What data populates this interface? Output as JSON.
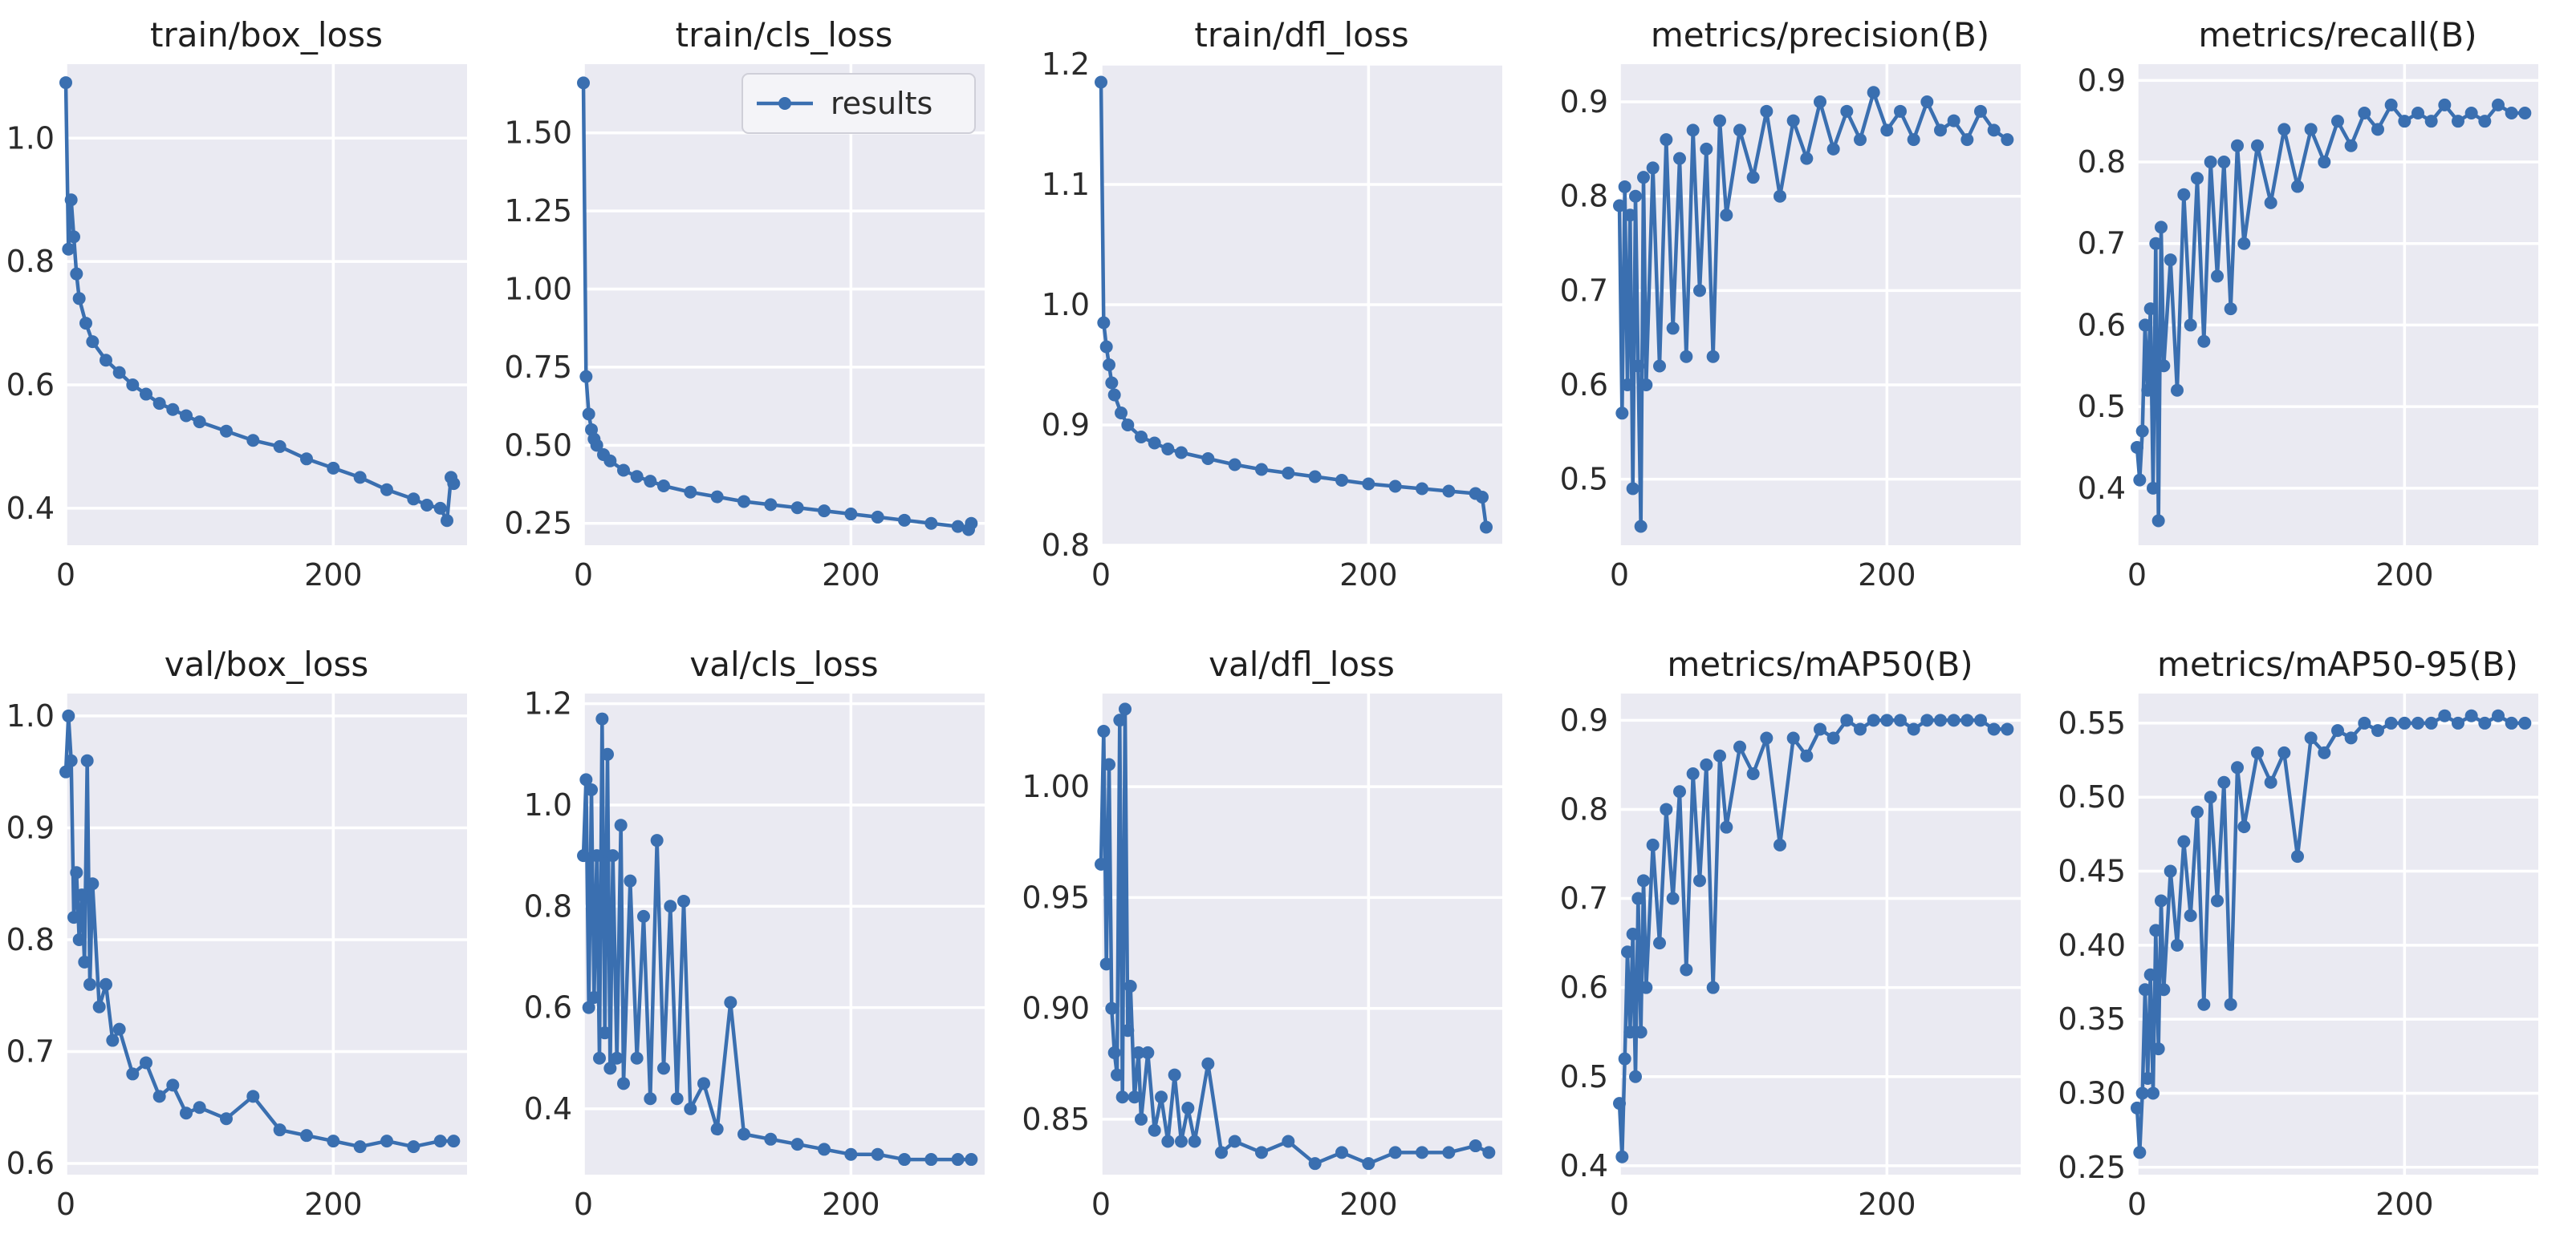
{
  "colors": {
    "series": "#3a6fb0",
    "panel_background": "#eaeaf2",
    "grid": "#ffffff"
  },
  "chart_data": [
    {
      "type": "line",
      "title": "train/box_loss",
      "xlim": [
        0,
        300
      ],
      "ylim": [
        0.34,
        1.12
      ],
      "xticks": [
        0,
        200
      ],
      "yticks": [
        0.4,
        0.6,
        0.8,
        1.0
      ],
      "ytick_labels": [
        "0.4",
        "0.6",
        "0.8",
        "1.0"
      ],
      "series": [
        {
          "name": "results",
          "x": [
            0,
            2,
            4,
            6,
            8,
            10,
            15,
            20,
            30,
            40,
            50,
            60,
            70,
            80,
            90,
            100,
            120,
            140,
            160,
            180,
            200,
            220,
            240,
            260,
            270,
            280,
            285,
            288,
            290
          ],
          "values": [
            1.09,
            0.82,
            0.9,
            0.84,
            0.78,
            0.74,
            0.7,
            0.67,
            0.64,
            0.62,
            0.6,
            0.585,
            0.57,
            0.56,
            0.55,
            0.54,
            0.525,
            0.51,
            0.5,
            0.48,
            0.465,
            0.45,
            0.43,
            0.415,
            0.405,
            0.4,
            0.38,
            0.45,
            0.44
          ]
        }
      ]
    },
    {
      "type": "line",
      "title": "train/cls_loss",
      "xlim": [
        0,
        300
      ],
      "ylim": [
        0.18,
        1.72
      ],
      "xticks": [
        0,
        200
      ],
      "yticks": [
        0.25,
        0.5,
        0.75,
        1.0,
        1.25,
        1.5
      ],
      "ytick_labels": [
        "0.25",
        "0.50",
        "0.75",
        "1.00",
        "1.25",
        "1.50"
      ],
      "legend": {
        "label": "results",
        "position": "upper right"
      },
      "series": [
        {
          "name": "results",
          "x": [
            0,
            2,
            4,
            6,
            8,
            10,
            15,
            20,
            30,
            40,
            50,
            60,
            80,
            100,
            120,
            140,
            160,
            180,
            200,
            220,
            240,
            260,
            280,
            288,
            290
          ],
          "values": [
            1.66,
            0.72,
            0.6,
            0.55,
            0.52,
            0.5,
            0.47,
            0.45,
            0.42,
            0.4,
            0.385,
            0.37,
            0.35,
            0.335,
            0.32,
            0.31,
            0.3,
            0.29,
            0.28,
            0.27,
            0.26,
            0.25,
            0.24,
            0.23,
            0.25
          ]
        }
      ]
    },
    {
      "type": "line",
      "title": "train/dfl_loss",
      "xlim": [
        0,
        300
      ],
      "ylim": [
        0.8,
        1.2
      ],
      "xticks": [
        0,
        200
      ],
      "yticks": [
        0.8,
        0.9,
        1.0,
        1.1,
        1.2
      ],
      "ytick_labels": [
        "0.8",
        "0.9",
        "1.0",
        "1.1",
        "1.2"
      ],
      "series": [
        {
          "name": "results",
          "x": [
            0,
            2,
            4,
            6,
            8,
            10,
            15,
            20,
            30,
            40,
            50,
            60,
            80,
            100,
            120,
            140,
            160,
            180,
            200,
            220,
            240,
            260,
            280,
            285,
            288
          ],
          "values": [
            1.185,
            0.985,
            0.965,
            0.95,
            0.935,
            0.925,
            0.91,
            0.9,
            0.89,
            0.885,
            0.88,
            0.877,
            0.872,
            0.867,
            0.863,
            0.86,
            0.857,
            0.854,
            0.851,
            0.849,
            0.847,
            0.845,
            0.843,
            0.84,
            0.815
          ]
        }
      ]
    },
    {
      "type": "line",
      "title": "metrics/precision(B)",
      "xlim": [
        0,
        300
      ],
      "ylim": [
        0.43,
        0.94
      ],
      "xticks": [
        0,
        200
      ],
      "yticks": [
        0.5,
        0.6,
        0.7,
        0.8,
        0.9
      ],
      "ytick_labels": [
        "0.5",
        "0.6",
        "0.7",
        "0.8",
        "0.9"
      ],
      "series": [
        {
          "name": "results",
          "x": [
            0,
            2,
            4,
            6,
            8,
            10,
            12,
            14,
            16,
            18,
            20,
            25,
            30,
            35,
            40,
            45,
            50,
            55,
            60,
            65,
            70,
            75,
            80,
            90,
            100,
            110,
            120,
            130,
            140,
            150,
            160,
            170,
            180,
            190,
            200,
            210,
            220,
            230,
            240,
            250,
            260,
            270,
            280,
            290
          ],
          "values": [
            0.79,
            0.57,
            0.81,
            0.6,
            0.78,
            0.49,
            0.8,
            0.62,
            0.45,
            0.82,
            0.6,
            0.83,
            0.62,
            0.86,
            0.66,
            0.84,
            0.63,
            0.87,
            0.7,
            0.85,
            0.63,
            0.88,
            0.78,
            0.87,
            0.82,
            0.89,
            0.8,
            0.88,
            0.84,
            0.9,
            0.85,
            0.89,
            0.86,
            0.91,
            0.87,
            0.89,
            0.86,
            0.9,
            0.87,
            0.88,
            0.86,
            0.89,
            0.87,
            0.86
          ]
        }
      ]
    },
    {
      "type": "line",
      "title": "metrics/recall(B)",
      "xlim": [
        0,
        300
      ],
      "ylim": [
        0.33,
        0.92
      ],
      "xticks": [
        0,
        200
      ],
      "yticks": [
        0.4,
        0.5,
        0.6,
        0.7,
        0.8,
        0.9
      ],
      "ytick_labels": [
        "0.4",
        "0.5",
        "0.6",
        "0.7",
        "0.8",
        "0.9"
      ],
      "series": [
        {
          "name": "results",
          "x": [
            0,
            2,
            4,
            6,
            8,
            10,
            12,
            14,
            16,
            18,
            20,
            25,
            30,
            35,
            40,
            45,
            50,
            55,
            60,
            65,
            70,
            75,
            80,
            90,
            100,
            110,
            120,
            130,
            140,
            150,
            160,
            170,
            180,
            190,
            200,
            210,
            220,
            230,
            240,
            250,
            260,
            270,
            280,
            290
          ],
          "values": [
            0.45,
            0.41,
            0.47,
            0.6,
            0.52,
            0.62,
            0.4,
            0.7,
            0.36,
            0.72,
            0.55,
            0.68,
            0.52,
            0.76,
            0.6,
            0.78,
            0.58,
            0.8,
            0.66,
            0.8,
            0.62,
            0.82,
            0.7,
            0.82,
            0.75,
            0.84,
            0.77,
            0.84,
            0.8,
            0.85,
            0.82,
            0.86,
            0.84,
            0.87,
            0.85,
            0.86,
            0.85,
            0.87,
            0.85,
            0.86,
            0.85,
            0.87,
            0.86,
            0.86
          ]
        }
      ]
    },
    {
      "type": "line",
      "title": "val/box_loss",
      "xlim": [
        0,
        300
      ],
      "ylim": [
        0.59,
        1.02
      ],
      "xticks": [
        0,
        200
      ],
      "yticks": [
        0.6,
        0.7,
        0.8,
        0.9,
        1.0
      ],
      "ytick_labels": [
        "0.6",
        "0.7",
        "0.8",
        "0.9",
        "1.0"
      ],
      "series": [
        {
          "name": "results",
          "x": [
            0,
            2,
            4,
            6,
            8,
            10,
            12,
            14,
            16,
            18,
            20,
            25,
            30,
            35,
            40,
            50,
            60,
            70,
            80,
            90,
            100,
            120,
            140,
            160,
            180,
            200,
            220,
            240,
            260,
            280,
            290
          ],
          "values": [
            0.95,
            1.0,
            0.96,
            0.82,
            0.86,
            0.8,
            0.84,
            0.78,
            0.96,
            0.76,
            0.85,
            0.74,
            0.76,
            0.71,
            0.72,
            0.68,
            0.69,
            0.66,
            0.67,
            0.645,
            0.65,
            0.64,
            0.66,
            0.63,
            0.625,
            0.62,
            0.615,
            0.62,
            0.615,
            0.62,
            0.62
          ]
        }
      ]
    },
    {
      "type": "line",
      "title": "val/cls_loss",
      "xlim": [
        0,
        300
      ],
      "ylim": [
        0.27,
        1.22
      ],
      "xticks": [
        0,
        200
      ],
      "yticks": [
        0.4,
        0.6,
        0.8,
        1.0,
        1.2
      ],
      "ytick_labels": [
        "0.4",
        "0.6",
        "0.8",
        "1.0",
        "1.2"
      ],
      "series": [
        {
          "name": "results",
          "x": [
            0,
            2,
            4,
            6,
            8,
            10,
            12,
            14,
            16,
            18,
            20,
            22,
            25,
            28,
            30,
            35,
            40,
            45,
            50,
            55,
            60,
            65,
            70,
            75,
            80,
            90,
            100,
            110,
            120,
            140,
            160,
            180,
            200,
            220,
            240,
            260,
            280,
            290
          ],
          "values": [
            0.9,
            1.05,
            0.6,
            1.03,
            0.62,
            0.9,
            0.5,
            1.17,
            0.55,
            1.1,
            0.48,
            0.9,
            0.5,
            0.96,
            0.45,
            0.85,
            0.5,
            0.78,
            0.42,
            0.93,
            0.48,
            0.8,
            0.42,
            0.81,
            0.4,
            0.45,
            0.36,
            0.61,
            0.35,
            0.34,
            0.33,
            0.32,
            0.31,
            0.31,
            0.3,
            0.3,
            0.3,
            0.3
          ]
        }
      ]
    },
    {
      "type": "line",
      "title": "val/dfl_loss",
      "xlim": [
        0,
        300
      ],
      "ylim": [
        0.825,
        1.042
      ],
      "xticks": [
        0,
        200
      ],
      "yticks": [
        0.85,
        0.9,
        0.95,
        1.0
      ],
      "ytick_labels": [
        "0.85",
        "0.90",
        "0.95",
        "1.00"
      ],
      "series": [
        {
          "name": "results",
          "x": [
            0,
            2,
            4,
            6,
            8,
            10,
            12,
            14,
            16,
            18,
            20,
            22,
            25,
            28,
            30,
            35,
            40,
            45,
            50,
            55,
            60,
            65,
            70,
            80,
            90,
            100,
            120,
            140,
            160,
            180,
            200,
            220,
            240,
            260,
            280,
            290
          ],
          "values": [
            0.965,
            1.025,
            0.92,
            1.01,
            0.9,
            0.88,
            0.87,
            1.03,
            0.86,
            1.035,
            0.89,
            0.91,
            0.86,
            0.88,
            0.85,
            0.88,
            0.845,
            0.86,
            0.84,
            0.87,
            0.84,
            0.855,
            0.84,
            0.875,
            0.835,
            0.84,
            0.835,
            0.84,
            0.83,
            0.835,
            0.83,
            0.835,
            0.835,
            0.835,
            0.838,
            0.835
          ]
        }
      ]
    },
    {
      "type": "line",
      "title": "metrics/mAP50(B)",
      "xlim": [
        0,
        300
      ],
      "ylim": [
        0.39,
        0.93
      ],
      "xticks": [
        0,
        200
      ],
      "yticks": [
        0.4,
        0.5,
        0.6,
        0.7,
        0.8,
        0.9
      ],
      "ytick_labels": [
        "0.4",
        "0.5",
        "0.6",
        "0.7",
        "0.8",
        "0.9"
      ],
      "series": [
        {
          "name": "results",
          "x": [
            0,
            2,
            4,
            6,
            8,
            10,
            12,
            14,
            16,
            18,
            20,
            25,
            30,
            35,
            40,
            45,
            50,
            55,
            60,
            65,
            70,
            75,
            80,
            90,
            100,
            110,
            120,
            130,
            140,
            150,
            160,
            170,
            180,
            190,
            200,
            210,
            220,
            230,
            240,
            250,
            260,
            270,
            280,
            290
          ],
          "values": [
            0.47,
            0.41,
            0.52,
            0.64,
            0.55,
            0.66,
            0.5,
            0.7,
            0.55,
            0.72,
            0.6,
            0.76,
            0.65,
            0.8,
            0.7,
            0.82,
            0.62,
            0.84,
            0.72,
            0.85,
            0.6,
            0.86,
            0.78,
            0.87,
            0.84,
            0.88,
            0.76,
            0.88,
            0.86,
            0.89,
            0.88,
            0.9,
            0.89,
            0.9,
            0.9,
            0.9,
            0.89,
            0.9,
            0.9,
            0.9,
            0.9,
            0.9,
            0.89,
            0.89
          ]
        }
      ]
    },
    {
      "type": "line",
      "title": "metrics/mAP50-95(B)",
      "xlim": [
        0,
        300
      ],
      "ylim": [
        0.245,
        0.57
      ],
      "xticks": [
        0,
        200
      ],
      "yticks": [
        0.25,
        0.3,
        0.35,
        0.4,
        0.45,
        0.5,
        0.55
      ],
      "ytick_labels": [
        "0.25",
        "0.30",
        "0.35",
        "0.40",
        "0.45",
        "0.50",
        "0.55"
      ],
      "series": [
        {
          "name": "results",
          "x": [
            0,
            2,
            4,
            6,
            8,
            10,
            12,
            14,
            16,
            18,
            20,
            25,
            30,
            35,
            40,
            45,
            50,
            55,
            60,
            65,
            70,
            75,
            80,
            90,
            100,
            110,
            120,
            130,
            140,
            150,
            160,
            170,
            180,
            190,
            200,
            210,
            220,
            230,
            240,
            250,
            260,
            270,
            280,
            290
          ],
          "values": [
            0.29,
            0.26,
            0.3,
            0.37,
            0.31,
            0.38,
            0.3,
            0.41,
            0.33,
            0.43,
            0.37,
            0.45,
            0.4,
            0.47,
            0.42,
            0.49,
            0.36,
            0.5,
            0.43,
            0.51,
            0.36,
            0.52,
            0.48,
            0.53,
            0.51,
            0.53,
            0.46,
            0.54,
            0.53,
            0.545,
            0.54,
            0.55,
            0.545,
            0.55,
            0.55,
            0.55,
            0.55,
            0.555,
            0.55,
            0.555,
            0.55,
            0.555,
            0.55,
            0.55
          ]
        }
      ]
    }
  ]
}
